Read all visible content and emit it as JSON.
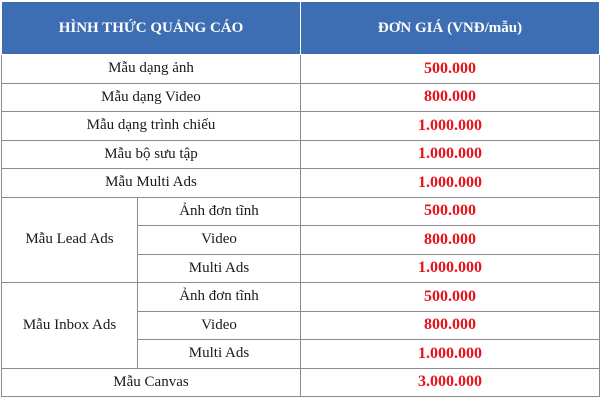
{
  "table": {
    "header": [
      "HÌNH THỨC QUẢNG CÁO",
      "ĐƠN GIÁ (VNĐ/mẫu)"
    ],
    "rows": [
      {
        "label": "Mẫu dạng ảnh",
        "price": "500.000"
      },
      {
        "label": "Mẫu dạng Video",
        "price": "800.000"
      },
      {
        "label": "Mẫu dạng trình chiếu",
        "price": "1.000.000"
      },
      {
        "label": "Mẫu bộ sưu tập",
        "price": "1.000.000"
      },
      {
        "label": "Mẫu Multi Ads",
        "price": "1.000.000"
      },
      {
        "label": "Mẫu Lead Ads",
        "items": [
          {
            "label": "Ảnh đơn tĩnh",
            "price": "500.000"
          },
          {
            "label": "Video",
            "price": "800.000"
          },
          {
            "label": "Multi Ads",
            "price": "1.000.000"
          }
        ]
      },
      {
        "label": "Mẫu Inbox Ads",
        "items": [
          {
            "label": "Ảnh đơn tĩnh",
            "price": "500.000"
          },
          {
            "label": "Video",
            "price": "800.000"
          },
          {
            "label": "Multi Ads",
            "price": "1.000.000"
          }
        ]
      },
      {
        "label": "Mẫu Canvas",
        "price": "3.000.000"
      }
    ]
  }
}
